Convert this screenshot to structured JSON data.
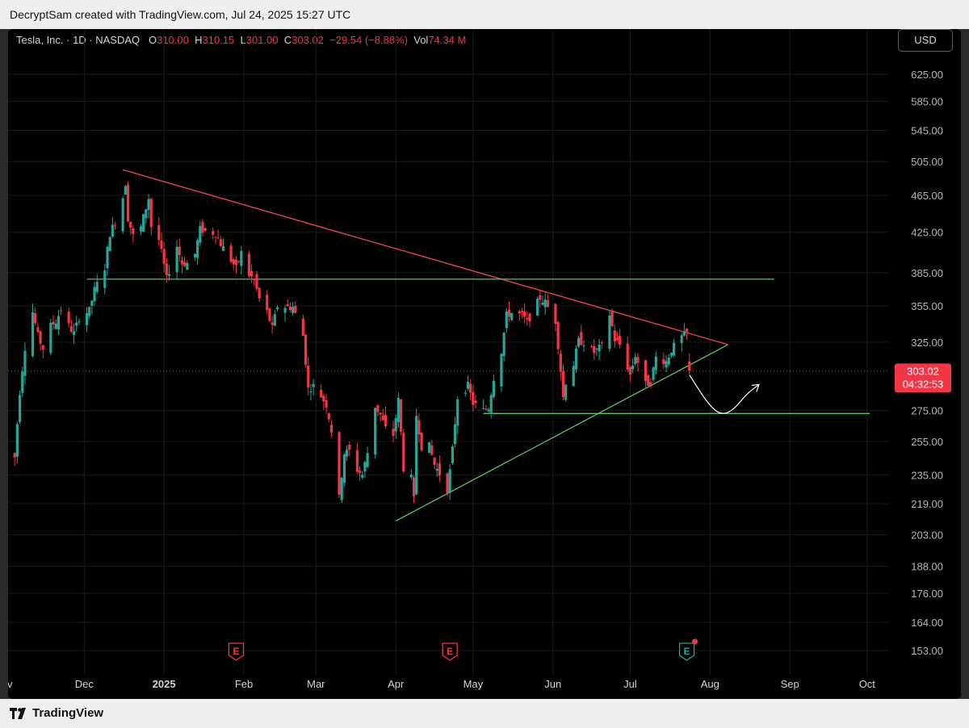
{
  "banner": {
    "text": "DecryptSam created with TradingView.com, Jul 24, 2025 15:27 UTC"
  },
  "footer": {
    "brand": "TradingView"
  },
  "legend": {
    "symbol": "Tesla, Inc. · 1D · NASDAQ",
    "o_label": "O",
    "o_value": "310.00",
    "h_label": "H",
    "h_value": "310.15",
    "l_label": "L",
    "l_value": "301.00",
    "c_label": "C",
    "c_value": "303.02",
    "change": "−29.54 (−8.88%)",
    "vol_label": "Vol",
    "vol_value": "74.34 M"
  },
  "currency": "USD",
  "colors": {
    "up": "#26a69a",
    "down": "#f23645",
    "grid": "#1b1b1b",
    "trend_red": "#f0475a",
    "trend_green": "#5fbf6a"
  },
  "chart_data": {
    "type": "candlestick",
    "y_scale": "log",
    "ylim": [
      148,
      640
    ],
    "y_ticks": [
      625,
      585,
      545,
      505,
      465,
      425,
      385,
      355,
      325,
      303.02,
      275,
      255,
      235,
      219,
      203,
      188,
      176,
      164,
      153
    ],
    "y_tick_labels": [
      "625.00",
      "585.00",
      "545.00",
      "505.00",
      "465.00",
      "425.00",
      "385.00",
      "355.00",
      "325.00",
      "",
      "275.00",
      "255.00",
      "235.00",
      "219.00",
      "203.00",
      "188.00",
      "176.00",
      "164.00",
      "153.00"
    ],
    "x_months": [
      {
        "label": "ov",
        "date": "2024-11-01"
      },
      {
        "label": "Dec",
        "date": "2024-12-01"
      },
      {
        "label": "2025",
        "date": "2025-01-01"
      },
      {
        "label": "Feb",
        "date": "2025-02-01"
      },
      {
        "label": "Mar",
        "date": "2025-03-01"
      },
      {
        "label": "Apr",
        "date": "2025-04-01"
      },
      {
        "label": "May",
        "date": "2025-05-01"
      },
      {
        "label": "Jun",
        "date": "2025-06-01"
      },
      {
        "label": "Jul",
        "date": "2025-07-01"
      },
      {
        "label": "Aug",
        "date": "2025-08-01"
      },
      {
        "label": "Sep",
        "date": "2025-09-01"
      },
      {
        "label": "Oct",
        "date": "2025-10-01"
      }
    ],
    "last_price": {
      "value": 303.02,
      "label": "303.02",
      "countdown": "04:32:53"
    },
    "close_path": [
      [
        "2024-11-01",
        248
      ],
      [
        "2024-11-04",
        245
      ],
      [
        "2024-11-06",
        288
      ],
      [
        "2024-11-08",
        321
      ],
      [
        "2024-11-11",
        350
      ],
      [
        "2024-11-13",
        330
      ],
      [
        "2024-11-15",
        320
      ],
      [
        "2024-11-18",
        338
      ],
      [
        "2024-11-20",
        342
      ],
      [
        "2024-11-22",
        352
      ],
      [
        "2024-11-25",
        338
      ],
      [
        "2024-11-27",
        332
      ],
      [
        "2024-11-29",
        345
      ],
      [
        "2024-12-03",
        351
      ],
      [
        "2024-12-05",
        369
      ],
      [
        "2024-12-09",
        390
      ],
      [
        "2024-12-11",
        424
      ],
      [
        "2024-12-13",
        436
      ],
      [
        "2024-12-16",
        463
      ],
      [
        "2024-12-17",
        479
      ],
      [
        "2024-12-18",
        440
      ],
      [
        "2024-12-20",
        421
      ],
      [
        "2024-12-23",
        430
      ],
      [
        "2024-12-26",
        462
      ],
      [
        "2024-12-27",
        431
      ],
      [
        "2024-12-30",
        417
      ],
      [
        "2025-01-02",
        379
      ],
      [
        "2025-01-06",
        411
      ],
      [
        "2025-01-08",
        394
      ],
      [
        "2025-01-10",
        394
      ],
      [
        "2025-01-13",
        403
      ],
      [
        "2025-01-15",
        428
      ],
      [
        "2025-01-17",
        426
      ],
      [
        "2025-01-21",
        424
      ],
      [
        "2025-01-23",
        413
      ],
      [
        "2025-01-27",
        397
      ],
      [
        "2025-01-29",
        389
      ],
      [
        "2025-01-31",
        404
      ],
      [
        "2025-02-03",
        383
      ],
      [
        "2025-02-05",
        378
      ],
      [
        "2025-02-07",
        361
      ],
      [
        "2025-02-10",
        350
      ],
      [
        "2025-02-12",
        336
      ],
      [
        "2025-02-14",
        355
      ],
      [
        "2025-02-18",
        354
      ],
      [
        "2025-02-20",
        354
      ],
      [
        "2025-02-24",
        330
      ],
      [
        "2025-02-26",
        290
      ],
      [
        "2025-02-28",
        292
      ],
      [
        "2025-03-03",
        285
      ],
      [
        "2025-03-05",
        279
      ],
      [
        "2025-03-07",
        262
      ],
      [
        "2025-03-10",
        222
      ],
      [
        "2025-03-12",
        248
      ],
      [
        "2025-03-14",
        249
      ],
      [
        "2025-03-17",
        238
      ],
      [
        "2025-03-19",
        235
      ],
      [
        "2025-03-21",
        248
      ],
      [
        "2025-03-24",
        278
      ],
      [
        "2025-03-26",
        272
      ],
      [
        "2025-03-28",
        263
      ],
      [
        "2025-03-31",
        259
      ],
      [
        "2025-04-02",
        282
      ],
      [
        "2025-04-04",
        239
      ],
      [
        "2025-04-07",
        233
      ],
      [
        "2025-04-08",
        221
      ],
      [
        "2025-04-09",
        272
      ],
      [
        "2025-04-11",
        252
      ],
      [
        "2025-04-14",
        252
      ],
      [
        "2025-04-16",
        241
      ],
      [
        "2025-04-21",
        227
      ],
      [
        "2025-04-22",
        237
      ],
      [
        "2025-04-23",
        250
      ],
      [
        "2025-04-25",
        284
      ],
      [
        "2025-04-29",
        292
      ],
      [
        "2025-05-01",
        280
      ],
      [
        "2025-05-05",
        275
      ],
      [
        "2025-05-07",
        277
      ],
      [
        "2025-05-09",
        298
      ],
      [
        "2025-05-12",
        318
      ],
      [
        "2025-05-14",
        347
      ],
      [
        "2025-05-16",
        349
      ],
      [
        "2025-05-20",
        347
      ],
      [
        "2025-05-22",
        341
      ],
      [
        "2025-05-27",
        362
      ],
      [
        "2025-05-29",
        358
      ],
      [
        "2025-06-02",
        342
      ],
      [
        "2025-06-05",
        284
      ],
      [
        "2025-06-06",
        295
      ],
      [
        "2025-06-09",
        308
      ],
      [
        "2025-06-11",
        326
      ],
      [
        "2025-06-13",
        325
      ],
      [
        "2025-06-17",
        317
      ],
      [
        "2025-06-20",
        322
      ],
      [
        "2025-06-23",
        348
      ],
      [
        "2025-06-25",
        327
      ],
      [
        "2025-06-27",
        323
      ],
      [
        "2025-07-01",
        300
      ],
      [
        "2025-07-03",
        315
      ],
      [
        "2025-07-07",
        293
      ],
      [
        "2025-07-09",
        295
      ],
      [
        "2025-07-11",
        313
      ],
      [
        "2025-07-15",
        310
      ],
      [
        "2025-07-17",
        319
      ],
      [
        "2025-07-21",
        329
      ],
      [
        "2025-07-23",
        332
      ],
      [
        "2025-07-24",
        303
      ]
    ],
    "trendlines": [
      {
        "name": "upper-falling",
        "color": "trend_red",
        "from": [
          "2024-12-16",
          495
        ],
        "to": [
          "2025-08-08",
          323
        ]
      },
      {
        "name": "lower-rising",
        "color": "trend_green",
        "from": [
          "2025-04-01",
          210
        ],
        "to": [
          "2025-08-08",
          323
        ]
      },
      {
        "name": "resistance",
        "color": "trend_green",
        "from": [
          "2024-12-02",
          379
        ],
        "to": [
          "2025-08-26",
          379
        ]
      },
      {
        "name": "support",
        "color": "trend_green",
        "from": [
          "2025-05-05",
          273
        ],
        "to": [
          "2025-10-02",
          273
        ]
      }
    ],
    "projection": [
      [
        "2025-07-24",
        300
      ],
      [
        "2025-07-31",
        280
      ],
      [
        "2025-08-05",
        272
      ],
      [
        "2025-08-10",
        275
      ],
      [
        "2025-08-15",
        286
      ],
      [
        "2025-08-20",
        293
      ]
    ],
    "events": [
      {
        "date": "2025-01-29",
        "label": "E"
      },
      {
        "date": "2025-04-22",
        "label": "E"
      },
      {
        "date": "2025-07-23",
        "label": "E"
      }
    ]
  }
}
